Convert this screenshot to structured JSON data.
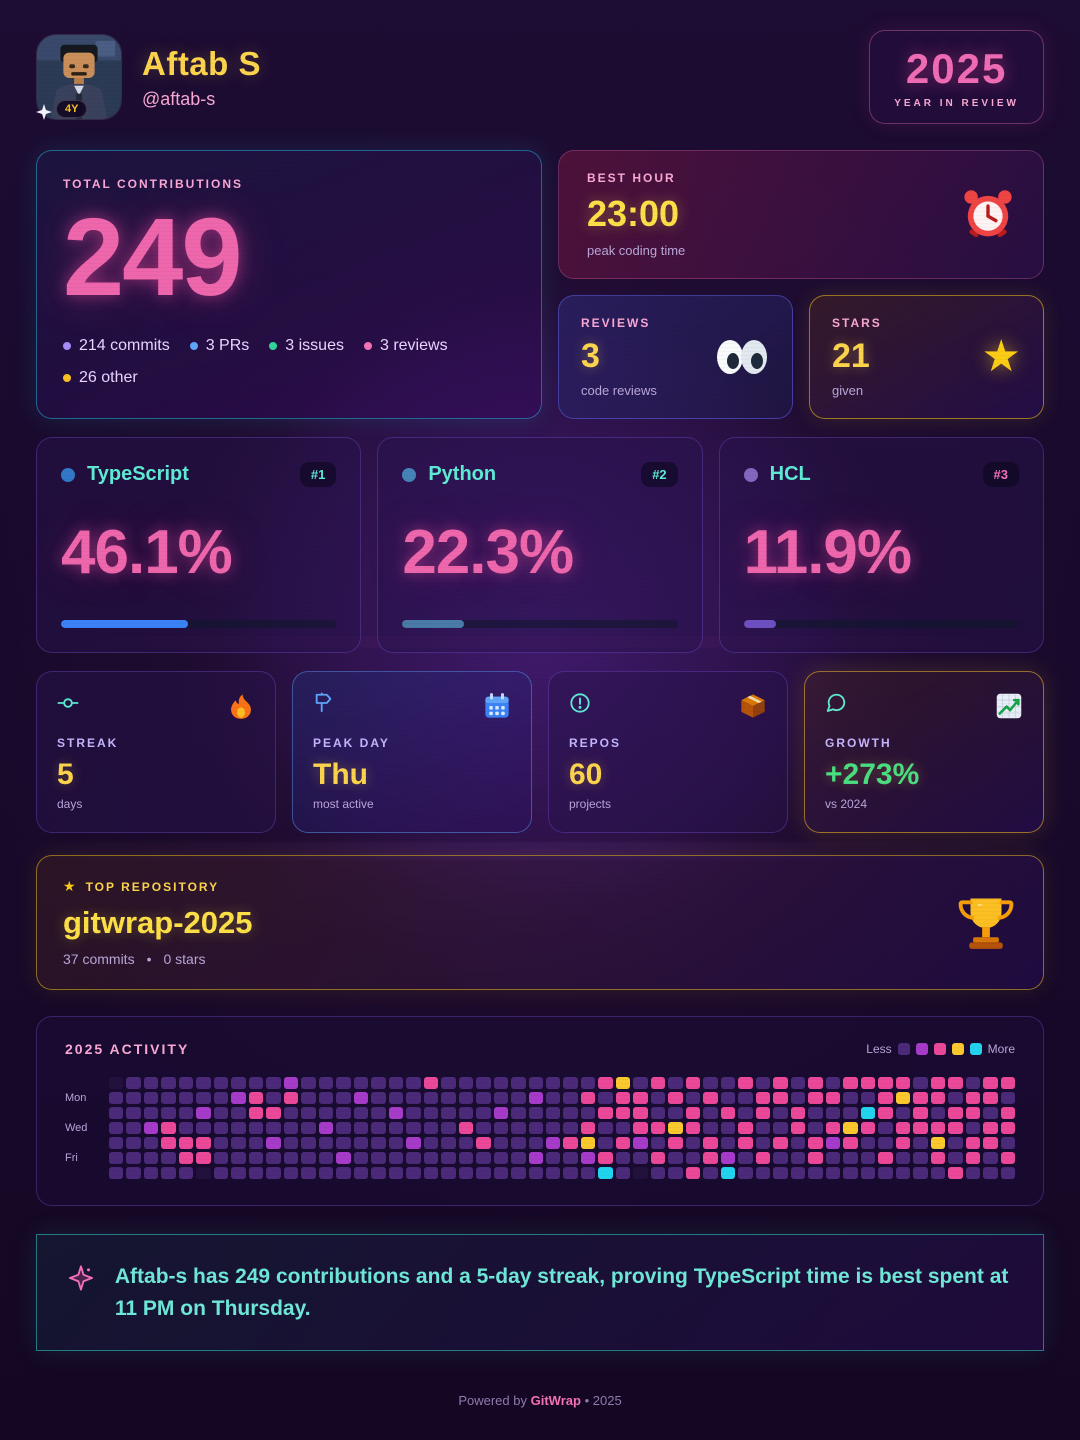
{
  "header": {
    "name": "Aftab S",
    "handle": "@aftab-s",
    "avatar_badge": "4Y",
    "year_card": {
      "year": "2025",
      "subtitle": "YEAR IN REVIEW"
    }
  },
  "contributions": {
    "label": "TOTAL CONTRIBUTIONS",
    "total": "249",
    "breakdown": [
      {
        "label": "214 commits",
        "color": "#a78bfa"
      },
      {
        "label": "3 PRs",
        "color": "#60a5fa"
      },
      {
        "label": "3 issues",
        "color": "#34d399"
      },
      {
        "label": "3 reviews",
        "color": "#f472b6"
      },
      {
        "label": "26 other",
        "color": "#fbbf24"
      }
    ]
  },
  "best_hour": {
    "label": "BEST HOUR",
    "value": "23:00",
    "caption": "peak coding time"
  },
  "reviews": {
    "label": "REVIEWS",
    "value": "3",
    "caption": "code reviews"
  },
  "stars": {
    "label": "STARS",
    "value": "21",
    "caption": "given",
    "star_glyph": "★"
  },
  "languages": [
    {
      "name": "TypeScript",
      "rank": "#1",
      "percent": "46.1%",
      "dot_color": "#3178c6",
      "bar_color": "#3b82f6",
      "rank_color": "#5eead4"
    },
    {
      "name": "Python",
      "rank": "#2",
      "percent": "22.3%",
      "dot_color": "#4584b6",
      "bar_color": "#4a7aa8",
      "rank_color": "#5eead4"
    },
    {
      "name": "HCL",
      "rank": "#3",
      "percent": "11.9%",
      "dot_color": "#8267be",
      "bar_color": "#6d4fc2",
      "rank_color": "#f472b6"
    }
  ],
  "stats": [
    {
      "label": "STREAK",
      "value": "5",
      "caption": "days",
      "value_color": "#fcd34d"
    },
    {
      "label": "PEAK DAY",
      "value": "Thu",
      "caption": "most active",
      "value_color": "#fcd34d"
    },
    {
      "label": "REPOS",
      "value": "60",
      "caption": "projects",
      "value_color": "#fcd34d"
    },
    {
      "label": "GROWTH",
      "value": "+273%",
      "caption": "vs 2024",
      "value_color": "#4ade80"
    }
  ],
  "top_repo": {
    "label": "TOP REPOSITORY",
    "star_glyph": "★",
    "name": "gitwrap-2025",
    "commits": "37 commits",
    "separator": "•",
    "stars": "0 stars"
  },
  "activity": {
    "title": "2025 ACTIVITY",
    "legend": {
      "less": "Less",
      "more": "More"
    },
    "day_labels": [
      "Mon",
      "Wed",
      "Fri"
    ],
    "levels": [
      "#2a1747",
      "#4b2a7a",
      "#a73bc9",
      "#ec4899",
      "#fbc82e",
      "#22d3ee"
    ],
    "weeks": [
      "0111111",
      "1111111",
      "1112111",
      "1113311",
      "1111331",
      "1121330",
      "1111111",
      "1211111",
      "1331111",
      "1131211",
      "2311111",
      "1111111",
      "1112111",
      "1111121",
      "1211111",
      "1111111",
      "1121111",
      "1111211",
      "3111111",
      "1111111",
      "1113111",
      "1111311",
      "1121111",
      "1111111",
      "1211121",
      "1111211",
      "1111311",
      "1313421",
      "3131135",
      "4331311",
      "1333210",
      "3113131",
      "1314311",
      "3133113",
      "1311331",
      "1131125",
      "3113311",
      "1331131",
      "3311311",
      "1133111",
      "3311331",
      "1313211",
      "3114311",
      "3153111",
      "3331131",
      "3413311",
      "1333111",
      "3313431",
      "3133113",
      "1331331",
      "3313311",
      "3133131"
    ]
  },
  "summary": {
    "text": "Aftab-s has 249 contributions and a 5-day streak, proving TypeScript time is best spent at 11 PM on Thursday."
  },
  "footer": {
    "powered_by": "Powered by",
    "brand": "GitWrap",
    "bullet": "•",
    "year": "2025"
  }
}
